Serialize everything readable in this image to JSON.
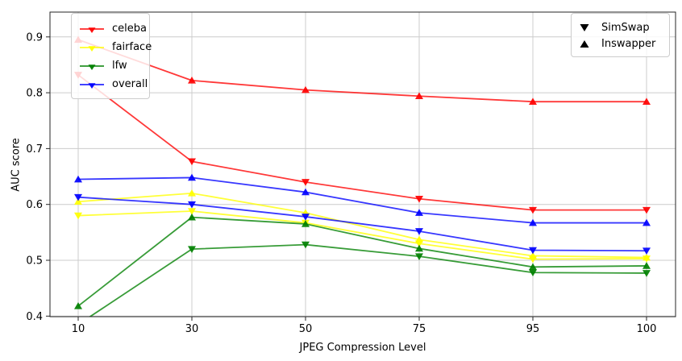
{
  "figure": {
    "background": "#ffffff",
    "xlabel": "JPEG Compression Level",
    "ylabel": "AUC score"
  },
  "chart_data": {
    "type": "line",
    "title": "",
    "xlabel": "JPEG Compression Level",
    "ylabel": "AUC score",
    "categories": [
      "10",
      "30",
      "50",
      "75",
      "95",
      "100"
    ],
    "x_spacing": "categorical-even",
    "yticks": [
      0.4,
      0.5,
      0.6,
      0.7,
      0.8,
      0.9
    ],
    "ylim": [
      0.4,
      0.945
    ],
    "grid": true,
    "grid_color": "#cccccc",
    "spine_color": "#262626",
    "dataset_legend": {
      "position": "upper-left",
      "marker": "triangle-down",
      "entries": [
        {
          "label": "celeba",
          "color": "#ff0000"
        },
        {
          "label": "fairface",
          "color": "#ffff00"
        },
        {
          "label": "lfw",
          "color": "#008000"
        },
        {
          "label": "overall",
          "color": "#0000ff"
        }
      ]
    },
    "marker_legend": {
      "position": "upper-right",
      "color": "#000000",
      "entries": [
        {
          "label": "SimSwap",
          "marker": "triangle-down"
        },
        {
          "label": "Inswapper",
          "marker": "triangle-up"
        }
      ]
    },
    "series": [
      {
        "name": "celeba-SimSwap",
        "dataset": "celeba",
        "method": "SimSwap",
        "marker": "triangle-down",
        "color": "#ff0000",
        "values": [
          0.832,
          0.677,
          0.64,
          0.61,
          0.59,
          0.59
        ]
      },
      {
        "name": "celeba-Inswapper",
        "dataset": "celeba",
        "method": "Inswapper",
        "marker": "triangle-up",
        "color": "#ff0000",
        "values": [
          0.895,
          0.822,
          0.805,
          0.794,
          0.784,
          0.784
        ]
      },
      {
        "name": "fairface-SimSwap",
        "dataset": "fairface",
        "method": "SimSwap",
        "marker": "triangle-down",
        "color": "#ffff00",
        "values": [
          0.58,
          0.588,
          0.567,
          0.53,
          0.502,
          0.503
        ]
      },
      {
        "name": "fairface-Inswapper",
        "dataset": "fairface",
        "method": "Inswapper",
        "marker": "triangle-up",
        "color": "#ffff00",
        "values": [
          0.605,
          0.62,
          0.585,
          0.537,
          0.508,
          0.505
        ]
      },
      {
        "name": "lfw-SimSwap",
        "dataset": "lfw",
        "method": "SimSwap",
        "marker": "triangle-down",
        "color": "#008000",
        "values": [
          0.385,
          0.52,
          0.528,
          0.507,
          0.478,
          0.477
        ]
      },
      {
        "name": "lfw-Inswapper",
        "dataset": "lfw",
        "method": "Inswapper",
        "marker": "triangle-up",
        "color": "#008000",
        "values": [
          0.418,
          0.577,
          0.565,
          0.521,
          0.488,
          0.49
        ]
      },
      {
        "name": "overall-SimSwap",
        "dataset": "overall",
        "method": "SimSwap",
        "marker": "triangle-down",
        "color": "#0000ff",
        "values": [
          0.613,
          0.6,
          0.578,
          0.552,
          0.518,
          0.517
        ]
      },
      {
        "name": "overall-Inswapper",
        "dataset": "overall",
        "method": "Inswapper",
        "marker": "triangle-up",
        "color": "#0000ff",
        "values": [
          0.645,
          0.648,
          0.622,
          0.585,
          0.567,
          0.567
        ]
      }
    ]
  }
}
